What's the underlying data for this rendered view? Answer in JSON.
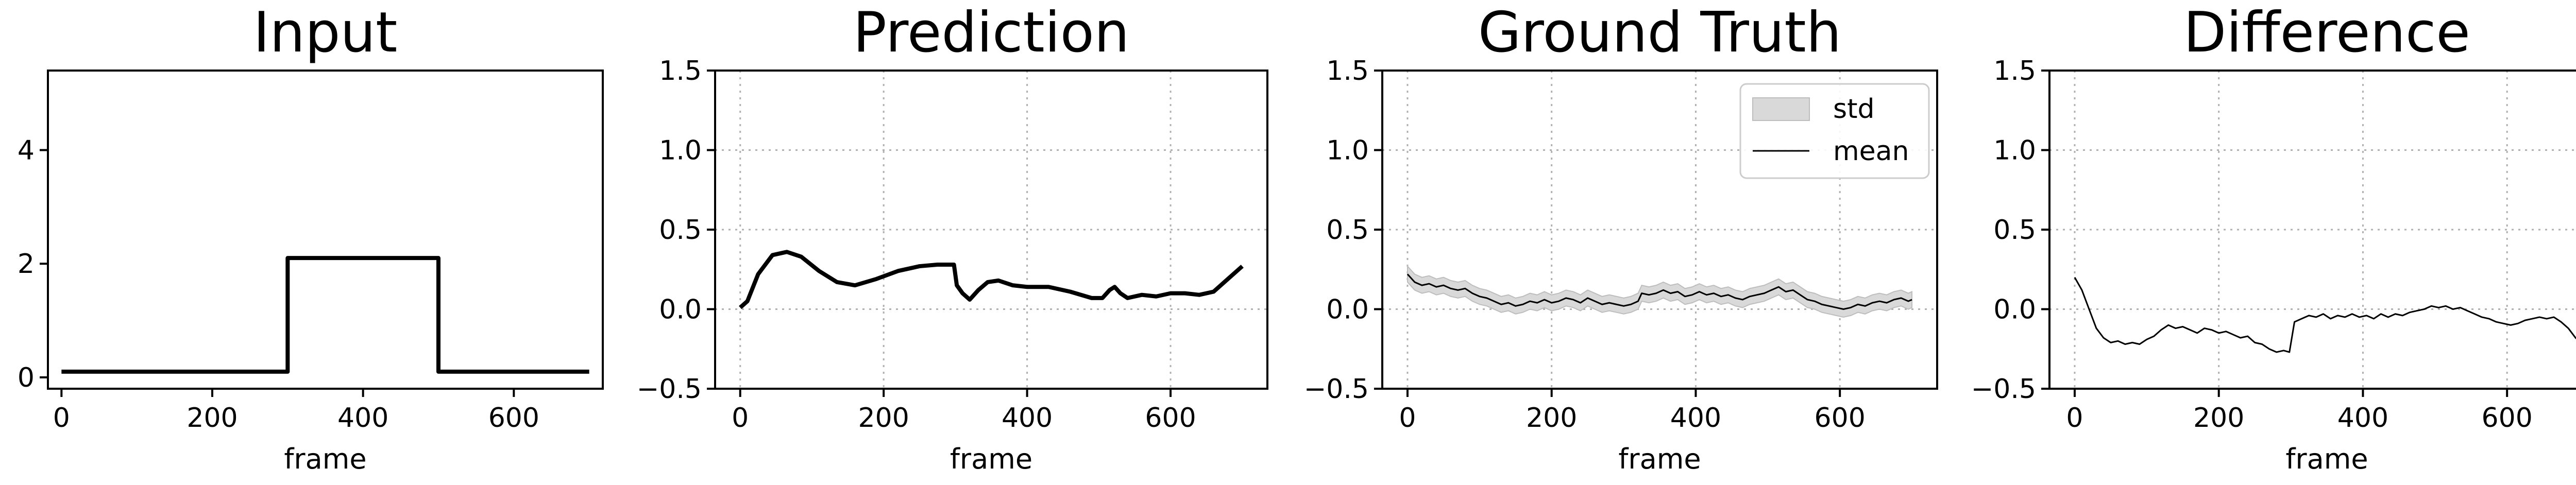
{
  "chart_data": [
    {
      "type": "line",
      "title": "Input",
      "xlabel": "frame",
      "ylabel": "",
      "xlim": [
        -18,
        718
      ],
      "ylim": [
        -0.2,
        5.4
      ],
      "xticks": [
        "0",
        "200",
        "400",
        "600"
      ],
      "yticks": [
        "0",
        "2",
        "4"
      ],
      "grid": false,
      "series": [
        {
          "values_xy": [
            [
              0,
              0.1
            ],
            [
              300,
              0.1
            ],
            [
              300,
              2.1
            ],
            [
              500,
              2.1
            ],
            [
              500,
              0.1
            ],
            [
              700,
              0.1
            ]
          ],
          "color": "#000000"
        }
      ]
    },
    {
      "type": "line",
      "title": "Prediction",
      "xlabel": "frame",
      "ylabel": "",
      "xlim": [
        -35,
        735
      ],
      "ylim": [
        -0.5,
        1.5
      ],
      "xticks": [
        "0",
        "200",
        "400",
        "600"
      ],
      "yticks": [
        "−0.5",
        "0.0",
        "0.5",
        "1.0",
        "1.5"
      ],
      "grid": true,
      "series": [
        {
          "values_xy": [
            [
              0,
              0.01
            ],
            [
              10,
              0.05
            ],
            [
              25,
              0.22
            ],
            [
              45,
              0.34
            ],
            [
              65,
              0.36
            ],
            [
              85,
              0.33
            ],
            [
              110,
              0.24
            ],
            [
              135,
              0.17
            ],
            [
              160,
              0.15
            ],
            [
              190,
              0.19
            ],
            [
              220,
              0.24
            ],
            [
              250,
              0.27
            ],
            [
              275,
              0.28
            ],
            [
              298,
              0.28
            ],
            [
              302,
              0.15
            ],
            [
              310,
              0.1
            ],
            [
              320,
              0.06
            ],
            [
              332,
              0.12
            ],
            [
              345,
              0.17
            ],
            [
              360,
              0.18
            ],
            [
              380,
              0.15
            ],
            [
              400,
              0.14
            ],
            [
              430,
              0.14
            ],
            [
              460,
              0.11
            ],
            [
              490,
              0.07
            ],
            [
              505,
              0.07
            ],
            [
              515,
              0.12
            ],
            [
              522,
              0.14
            ],
            [
              530,
              0.1
            ],
            [
              540,
              0.07
            ],
            [
              560,
              0.09
            ],
            [
              580,
              0.08
            ],
            [
              600,
              0.1
            ],
            [
              620,
              0.1
            ],
            [
              640,
              0.09
            ],
            [
              660,
              0.11
            ],
            [
              680,
              0.19
            ],
            [
              700,
              0.27
            ]
          ],
          "color": "#000000"
        }
      ]
    },
    {
      "type": "area",
      "title": "Ground Truth",
      "xlabel": "frame",
      "ylabel": "",
      "xlim": [
        -35,
        735
      ],
      "ylim": [
        -0.5,
        1.5
      ],
      "xticks": [
        "0",
        "200",
        "400",
        "600"
      ],
      "yticks": [
        "−0.5",
        "0.0",
        "0.5",
        "1.0",
        "1.5"
      ],
      "grid": true,
      "legend": {
        "position": "top-right",
        "entries": [
          "std",
          "mean"
        ]
      },
      "series": [
        {
          "name": "mean",
          "color": "#000000",
          "values_xy": [
            [
              0,
              0.22
            ],
            [
              10,
              0.17
            ],
            [
              20,
              0.15
            ],
            [
              30,
              0.16
            ],
            [
              40,
              0.14
            ],
            [
              50,
              0.15
            ],
            [
              60,
              0.13
            ],
            [
              70,
              0.12
            ],
            [
              80,
              0.13
            ],
            [
              90,
              0.1
            ],
            [
              100,
              0.08
            ],
            [
              110,
              0.07
            ],
            [
              120,
              0.05
            ],
            [
              130,
              0.03
            ],
            [
              140,
              0.04
            ],
            [
              150,
              0.02
            ],
            [
              160,
              0.03
            ],
            [
              170,
              0.05
            ],
            [
              180,
              0.04
            ],
            [
              190,
              0.06
            ],
            [
              200,
              0.04
            ],
            [
              210,
              0.05
            ],
            [
              220,
              0.07
            ],
            [
              230,
              0.06
            ],
            [
              240,
              0.04
            ],
            [
              250,
              0.07
            ],
            [
              260,
              0.05
            ],
            [
              270,
              0.03
            ],
            [
              280,
              0.04
            ],
            [
              290,
              0.03
            ],
            [
              300,
              0.02
            ],
            [
              310,
              0.03
            ],
            [
              320,
              0.05
            ],
            [
              325,
              0.1
            ],
            [
              335,
              0.09
            ],
            [
              345,
              0.1
            ],
            [
              355,
              0.12
            ],
            [
              365,
              0.1
            ],
            [
              375,
              0.11
            ],
            [
              385,
              0.08
            ],
            [
              395,
              0.09
            ],
            [
              405,
              0.11
            ],
            [
              415,
              0.09
            ],
            [
              425,
              0.1
            ],
            [
              435,
              0.08
            ],
            [
              445,
              0.09
            ],
            [
              455,
              0.07
            ],
            [
              465,
              0.06
            ],
            [
              475,
              0.08
            ],
            [
              485,
              0.09
            ],
            [
              495,
              0.1
            ],
            [
              505,
              0.12
            ],
            [
              515,
              0.14
            ],
            [
              525,
              0.11
            ],
            [
              535,
              0.12
            ],
            [
              545,
              0.09
            ],
            [
              555,
              0.06
            ],
            [
              565,
              0.05
            ],
            [
              575,
              0.03
            ],
            [
              585,
              0.02
            ],
            [
              595,
              0.01
            ],
            [
              605,
              0.0
            ],
            [
              615,
              0.01
            ],
            [
              625,
              0.03
            ],
            [
              635,
              0.02
            ],
            [
              645,
              0.04
            ],
            [
              655,
              0.05
            ],
            [
              665,
              0.04
            ],
            [
              675,
              0.06
            ],
            [
              685,
              0.07
            ],
            [
              695,
              0.05
            ],
            [
              700,
              0.06
            ]
          ]
        },
        {
          "name": "std",
          "color": "#d9d9d9",
          "spread": 0.05
        }
      ]
    },
    {
      "type": "line",
      "title": "Difference",
      "xlabel": "frame",
      "ylabel": "",
      "xlim": [
        -35,
        735
      ],
      "ylim": [
        -0.5,
        1.5
      ],
      "xticks": [
        "0",
        "200",
        "400",
        "600"
      ],
      "yticks": [
        "−0.5",
        "0.0",
        "0.5",
        "1.0",
        "1.5"
      ],
      "grid": true,
      "series": [
        {
          "values_xy": [
            [
              0,
              0.2
            ],
            [
              10,
              0.12
            ],
            [
              20,
              0.0
            ],
            [
              30,
              -0.12
            ],
            [
              40,
              -0.18
            ],
            [
              50,
              -0.21
            ],
            [
              60,
              -0.2
            ],
            [
              70,
              -0.22
            ],
            [
              80,
              -0.21
            ],
            [
              90,
              -0.22
            ],
            [
              100,
              -0.19
            ],
            [
              110,
              -0.17
            ],
            [
              120,
              -0.13
            ],
            [
              130,
              -0.1
            ],
            [
              140,
              -0.12
            ],
            [
              150,
              -0.11
            ],
            [
              160,
              -0.13
            ],
            [
              170,
              -0.15
            ],
            [
              180,
              -0.12
            ],
            [
              190,
              -0.13
            ],
            [
              200,
              -0.15
            ],
            [
              210,
              -0.14
            ],
            [
              220,
              -0.16
            ],
            [
              230,
              -0.18
            ],
            [
              240,
              -0.17
            ],
            [
              250,
              -0.21
            ],
            [
              260,
              -0.22
            ],
            [
              270,
              -0.25
            ],
            [
              280,
              -0.27
            ],
            [
              290,
              -0.26
            ],
            [
              298,
              -0.27
            ],
            [
              305,
              -0.08
            ],
            [
              315,
              -0.06
            ],
            [
              325,
              -0.04
            ],
            [
              335,
              -0.05
            ],
            [
              345,
              -0.03
            ],
            [
              355,
              -0.06
            ],
            [
              365,
              -0.04
            ],
            [
              375,
              -0.05
            ],
            [
              385,
              -0.03
            ],
            [
              395,
              -0.05
            ],
            [
              405,
              -0.04
            ],
            [
              415,
              -0.06
            ],
            [
              425,
              -0.03
            ],
            [
              435,
              -0.05
            ],
            [
              445,
              -0.03
            ],
            [
              455,
              -0.04
            ],
            [
              465,
              -0.02
            ],
            [
              475,
              -0.01
            ],
            [
              485,
              0.0
            ],
            [
              495,
              0.02
            ],
            [
              505,
              0.01
            ],
            [
              515,
              0.02
            ],
            [
              525,
              0.0
            ],
            [
              535,
              0.01
            ],
            [
              545,
              -0.01
            ],
            [
              555,
              -0.03
            ],
            [
              565,
              -0.05
            ],
            [
              575,
              -0.06
            ],
            [
              585,
              -0.08
            ],
            [
              595,
              -0.09
            ],
            [
              605,
              -0.1
            ],
            [
              615,
              -0.09
            ],
            [
              625,
              -0.07
            ],
            [
              635,
              -0.06
            ],
            [
              645,
              -0.05
            ],
            [
              655,
              -0.06
            ],
            [
              665,
              -0.05
            ],
            [
              675,
              -0.08
            ],
            [
              685,
              -0.12
            ],
            [
              695,
              -0.18
            ],
            [
              700,
              -0.2
            ]
          ],
          "color": "#000000"
        }
      ]
    }
  ]
}
